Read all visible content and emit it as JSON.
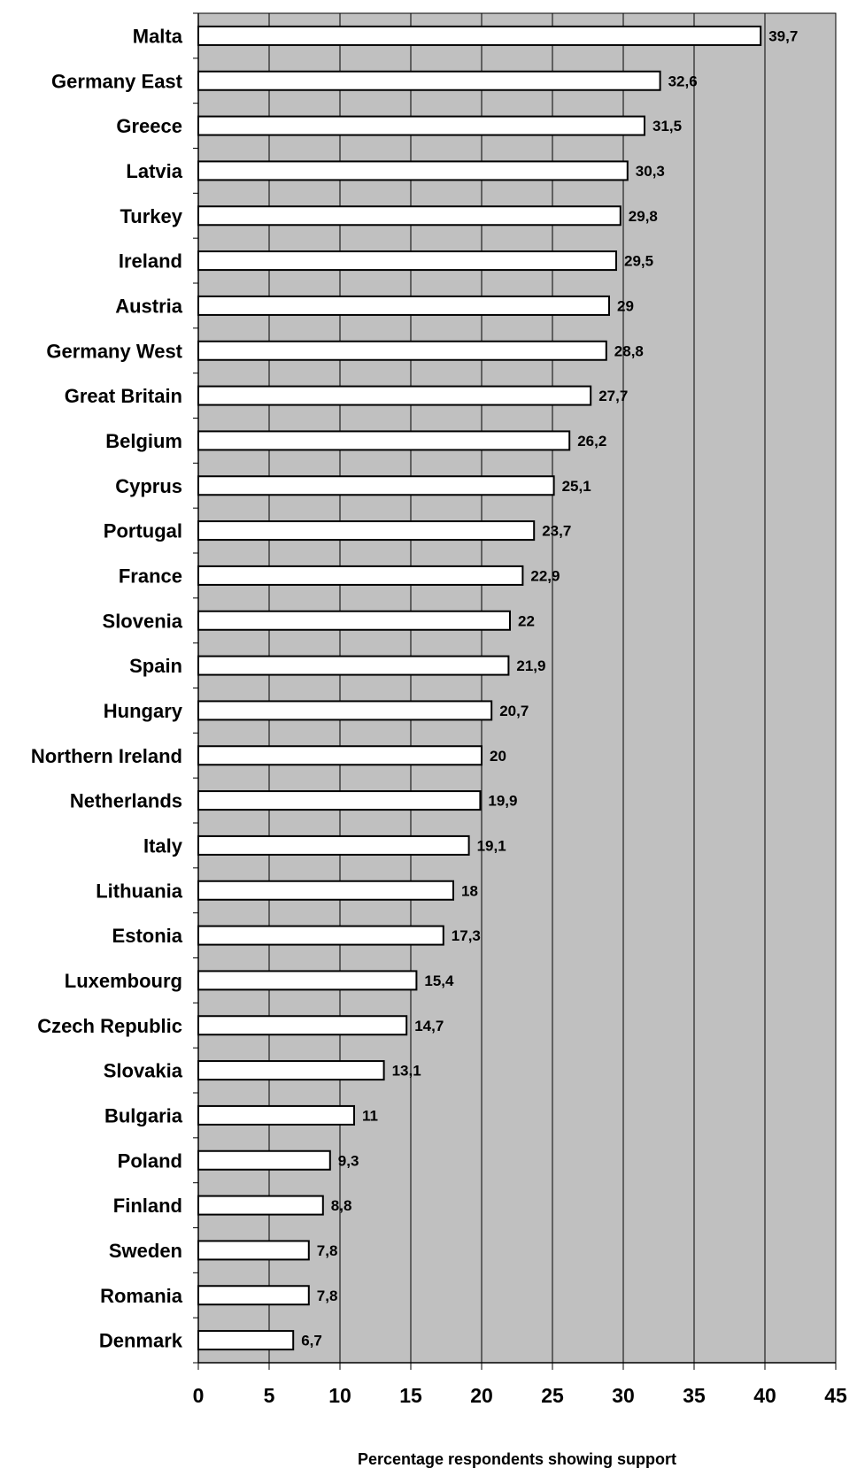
{
  "chart_data": {
    "type": "bar",
    "orientation": "horizontal",
    "title": "",
    "xlabel": "Percentage respondents showing support",
    "ylabel": "",
    "xlim": [
      0,
      45
    ],
    "xticks": [
      0,
      5,
      10,
      15,
      20,
      25,
      30,
      35,
      40,
      45
    ],
    "grid": true,
    "legend": "none",
    "plot_background": "#c0c0c0",
    "bar_fill": "#ffffff",
    "bar_edge": "#000000",
    "categories": [
      "Malta",
      "Germany East",
      "Greece",
      "Latvia",
      "Turkey",
      "Ireland",
      "Austria",
      "Germany West",
      "Great Britain",
      "Belgium",
      "Cyprus",
      "Portugal",
      "France",
      "Slovenia",
      "Spain",
      "Hungary",
      "Northern Ireland",
      "Netherlands",
      "Italy",
      "Lithuania",
      "Estonia",
      "Luxembourg",
      "Czech Republic",
      "Slovakia",
      "Bulgaria",
      "Poland",
      "Finland",
      "Sweden",
      "Romania",
      "Denmark"
    ],
    "values": [
      39.7,
      32.6,
      31.5,
      30.3,
      29.8,
      29.5,
      29,
      28.8,
      27.7,
      26.2,
      25.1,
      23.7,
      22.9,
      22,
      21.9,
      20.7,
      20,
      19.9,
      19.1,
      18,
      17.3,
      15.4,
      14.7,
      13.1,
      11,
      9.3,
      8.8,
      7.8,
      7.8,
      6.7
    ],
    "value_labels": [
      "39,7",
      "32,6",
      "31,5",
      "30,3",
      "29,8",
      "29,5",
      "29",
      "28,8",
      "27,7",
      "26,2",
      "25,1",
      "23,7",
      "22,9",
      "22",
      "21,9",
      "20,7",
      "20",
      "19,9",
      "19,1",
      "18",
      "17,3",
      "15,4",
      "14,7",
      "13,1",
      "11",
      "9,3",
      "8,8",
      "7,8",
      "7,8",
      "6,7"
    ]
  }
}
